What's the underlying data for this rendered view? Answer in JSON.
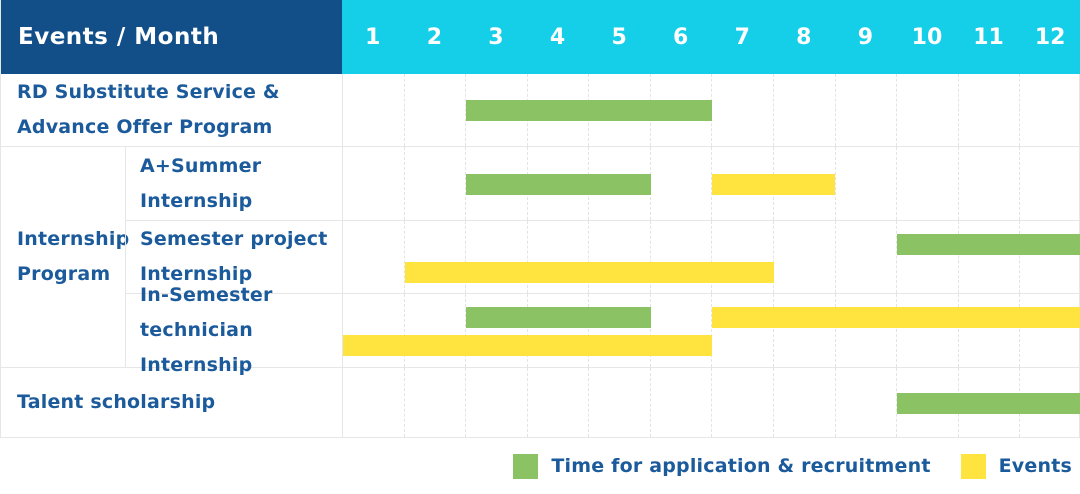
{
  "colors": {
    "header_bg": "#124F89",
    "months_bg": "#15CFE8",
    "header_text": "#FFFFFF",
    "label_text": "#1B5A9B",
    "recruitment_green": "#8BC364",
    "events_yellow": "#FFE33F",
    "grid_line": "#E6E6E6"
  },
  "table": {
    "header": {
      "label": "Events / Month",
      "months": [
        "1",
        "2",
        "3",
        "4",
        "5",
        "6",
        "7",
        "8",
        "9",
        "10",
        "11",
        "12"
      ]
    },
    "group": {
      "label": "Internship Program"
    },
    "rows": [
      {
        "name": "rd-substitute-service-advance-offer-program",
        "label": "RD Substitute Service &\nAdvance Offer Program",
        "in_group": false,
        "bars": [
          {
            "type": "recruitment",
            "start_month": 3,
            "end_month": 6,
            "lane": "single"
          }
        ]
      },
      {
        "name": "a-plus-summer-internship",
        "label": "A+Summer\nInternship",
        "in_group": true,
        "bars": [
          {
            "type": "recruitment",
            "start_month": 3,
            "end_month": 5,
            "lane": "single"
          },
          {
            "type": "events",
            "start_month": 7,
            "end_month": 8,
            "lane": "single"
          }
        ]
      },
      {
        "name": "semester-project-internship",
        "label": "Semester project\nInternship",
        "in_group": true,
        "bars": [
          {
            "type": "recruitment",
            "start_month": 10,
            "end_month": 12,
            "lane": "top"
          },
          {
            "type": "events",
            "start_month": 2,
            "end_month": 7,
            "lane": "bottom"
          }
        ]
      },
      {
        "name": "in-semester-technician-internship",
        "label": "In-Semester\ntechnician Internship",
        "in_group": true,
        "bars": [
          {
            "type": "recruitment",
            "start_month": 3,
            "end_month": 5,
            "lane": "top"
          },
          {
            "type": "events",
            "start_month": 7,
            "end_month": 12,
            "lane": "top"
          },
          {
            "type": "events",
            "start_month": 1,
            "end_month": 6,
            "lane": "bottom"
          }
        ]
      },
      {
        "name": "talent-scholarship",
        "label": "Talent scholarship",
        "in_group": false,
        "bars": [
          {
            "type": "recruitment",
            "start_month": 10,
            "end_month": 12,
            "lane": "single"
          }
        ]
      }
    ]
  },
  "legend": {
    "items": [
      {
        "type": "recruitment",
        "label": "Time for application & recruitment",
        "color": "#8BC364"
      },
      {
        "type": "events",
        "label": "Events",
        "color": "#FFE33F"
      }
    ]
  },
  "chart_data": {
    "type": "gantt",
    "title": "Events / Month",
    "xlabel": "Month",
    "x_ticks": [
      1,
      2,
      3,
      4,
      5,
      6,
      7,
      8,
      9,
      10,
      11,
      12
    ],
    "x_range": [
      1,
      12
    ],
    "grid": true,
    "legend_position": "bottom-right",
    "categories": [
      "RD Substitute Service & Advance Offer Program",
      "Internship Program / A+Summer Internship",
      "Internship Program / Semester project Internship",
      "Internship Program / In-Semester technician Internship",
      "Talent scholarship"
    ],
    "series": [
      {
        "name": "Time for application & recruitment",
        "color": "#8BC364",
        "ranges": [
          {
            "category": "RD Substitute Service & Advance Offer Program",
            "start_month": 3,
            "end_month": 6
          },
          {
            "category": "Internship Program / A+Summer Internship",
            "start_month": 3,
            "end_month": 5
          },
          {
            "category": "Internship Program / Semester project Internship",
            "start_month": 10,
            "end_month": 12
          },
          {
            "category": "Internship Program / In-Semester technician Internship",
            "start_month": 3,
            "end_month": 5
          },
          {
            "category": "Talent scholarship",
            "start_month": 10,
            "end_month": 12
          }
        ]
      },
      {
        "name": "Events",
        "color": "#FFE33F",
        "ranges": [
          {
            "category": "Internship Program / A+Summer Internship",
            "start_month": 7,
            "end_month": 8
          },
          {
            "category": "Internship Program / Semester project Internship",
            "start_month": 2,
            "end_month": 7
          },
          {
            "category": "Internship Program / In-Semester technician Internship",
            "start_month": 7,
            "end_month": 12
          },
          {
            "category": "Internship Program / In-Semester technician Internship",
            "start_month": 1,
            "end_month": 6
          }
        ]
      }
    ]
  }
}
